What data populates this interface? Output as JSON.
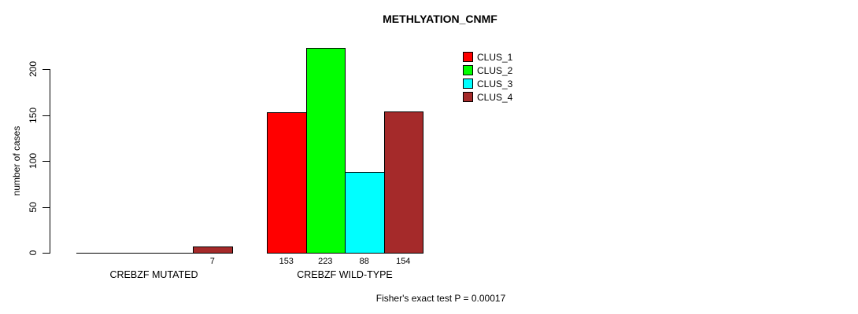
{
  "chart_data": {
    "type": "bar",
    "title": "METHLYATION_CNMF",
    "xlabel": "",
    "ylabel": "number of cases",
    "ylim": [
      0,
      200
    ],
    "yticks": [
      0,
      50,
      100,
      150,
      200
    ],
    "grid": false,
    "legend_position": "top-right",
    "categories": [
      "CREBZF MUTATED",
      "CREBZF WILD-TYPE"
    ],
    "series": [
      {
        "name": "CLUS_1",
        "color": "#ff0000",
        "values": [
          0,
          153
        ]
      },
      {
        "name": "CLUS_2",
        "color": "#00ff00",
        "values": [
          0,
          223
        ]
      },
      {
        "name": "CLUS_3",
        "color": "#00ffff",
        "values": [
          0,
          88
        ]
      },
      {
        "name": "CLUS_4",
        "color": "#a52a2a",
        "values": [
          7,
          154
        ]
      }
    ],
    "bar_value_labels": [
      [
        "",
        "",
        "",
        "7"
      ],
      [
        "153",
        "223",
        "88",
        "154"
      ]
    ],
    "annotation": "Fisher's exact test P = 0.00017"
  }
}
